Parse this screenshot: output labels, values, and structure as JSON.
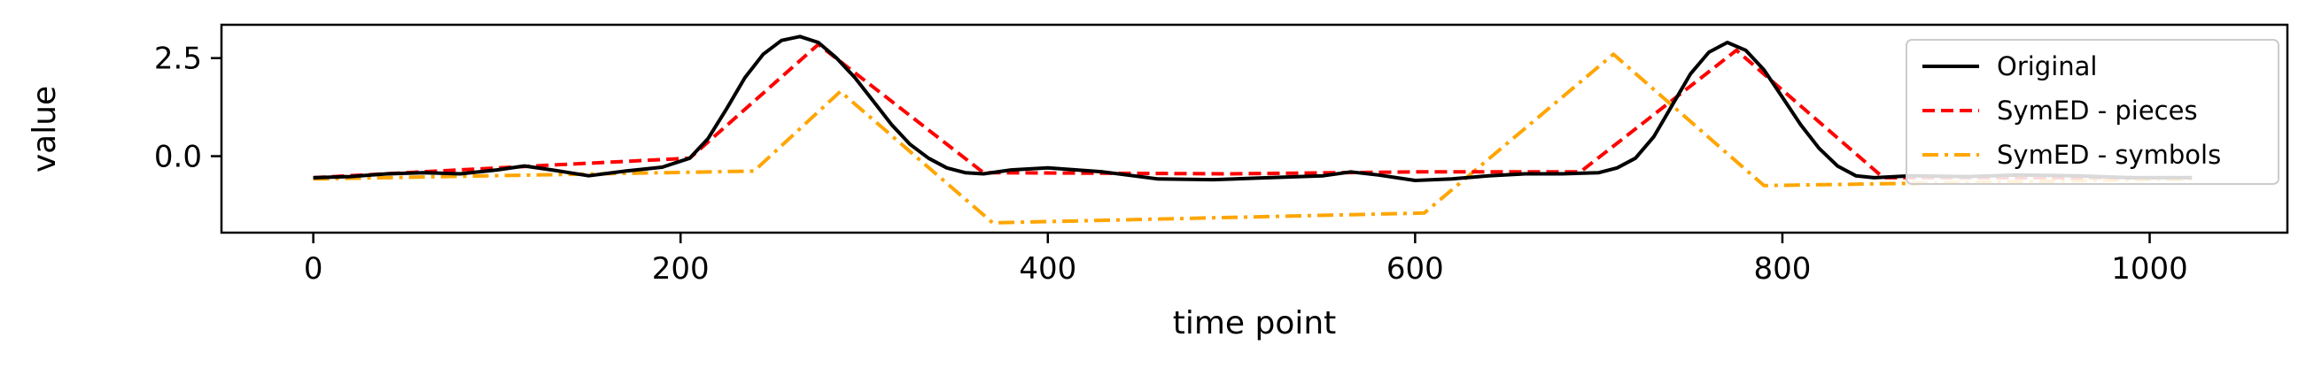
{
  "chart_data": {
    "type": "line",
    "title": "",
    "xlabel": "time point",
    "ylabel": "value",
    "xlim": [
      -50,
      1075
    ],
    "ylim": [
      -1.95,
      3.35
    ],
    "xticks": [
      0,
      200,
      400,
      600,
      800,
      1000
    ],
    "xtick_labels": [
      "0",
      "200",
      "400",
      "600",
      "800",
      "1000"
    ],
    "yticks": [
      0.0,
      2.5
    ],
    "ytick_labels": [
      "0.0",
      "2.5"
    ],
    "legend_position": "top-right",
    "series": [
      {
        "name": "Original",
        "color": "#000000",
        "dash": "solid",
        "x": [
          0,
          20,
          40,
          60,
          80,
          100,
          115,
          130,
          150,
          170,
          190,
          205,
          215,
          225,
          235,
          245,
          255,
          265,
          275,
          285,
          295,
          305,
          315,
          325,
          335,
          345,
          355,
          365,
          380,
          400,
          430,
          460,
          490,
          520,
          550,
          565,
          580,
          600,
          620,
          640,
          660,
          680,
          700,
          710,
          720,
          730,
          740,
          750,
          760,
          770,
          780,
          790,
          800,
          810,
          820,
          830,
          840,
          850,
          870,
          900,
          930,
          960,
          990,
          1023
        ],
        "y": [
          -0.55,
          -0.52,
          -0.45,
          -0.42,
          -0.45,
          -0.35,
          -0.25,
          -0.35,
          -0.5,
          -0.38,
          -0.28,
          -0.05,
          0.45,
          1.2,
          2.0,
          2.6,
          2.95,
          3.05,
          2.9,
          2.5,
          2.0,
          1.4,
          0.8,
          0.3,
          -0.05,
          -0.3,
          -0.42,
          -0.45,
          -0.35,
          -0.3,
          -0.4,
          -0.58,
          -0.6,
          -0.55,
          -0.5,
          -0.4,
          -0.48,
          -0.62,
          -0.58,
          -0.5,
          -0.45,
          -0.45,
          -0.42,
          -0.3,
          -0.05,
          0.5,
          1.3,
          2.1,
          2.65,
          2.9,
          2.7,
          2.2,
          1.5,
          0.8,
          0.2,
          -0.25,
          -0.5,
          -0.55,
          -0.5,
          -0.52,
          -0.48,
          -0.5,
          -0.55,
          -0.55
        ]
      },
      {
        "name": "SymED - pieces",
        "color": "#ff0000",
        "dash": "dashed",
        "x": [
          0,
          120,
          205,
          275,
          365,
          500,
          600,
          690,
          775,
          855,
          1023
        ],
        "y": [
          -0.55,
          -0.25,
          -0.05,
          2.85,
          -0.42,
          -0.45,
          -0.4,
          -0.4,
          2.7,
          -0.55,
          -0.55
        ]
      },
      {
        "name": "SymED - symbols",
        "color": "#ffa500",
        "dash": "dashdot",
        "x": [
          0,
          240,
          287,
          370,
          605,
          708,
          790,
          1023
        ],
        "y": [
          -0.58,
          -0.38,
          1.65,
          -1.7,
          -1.45,
          2.6,
          -0.75,
          -0.58
        ]
      }
    ]
  }
}
